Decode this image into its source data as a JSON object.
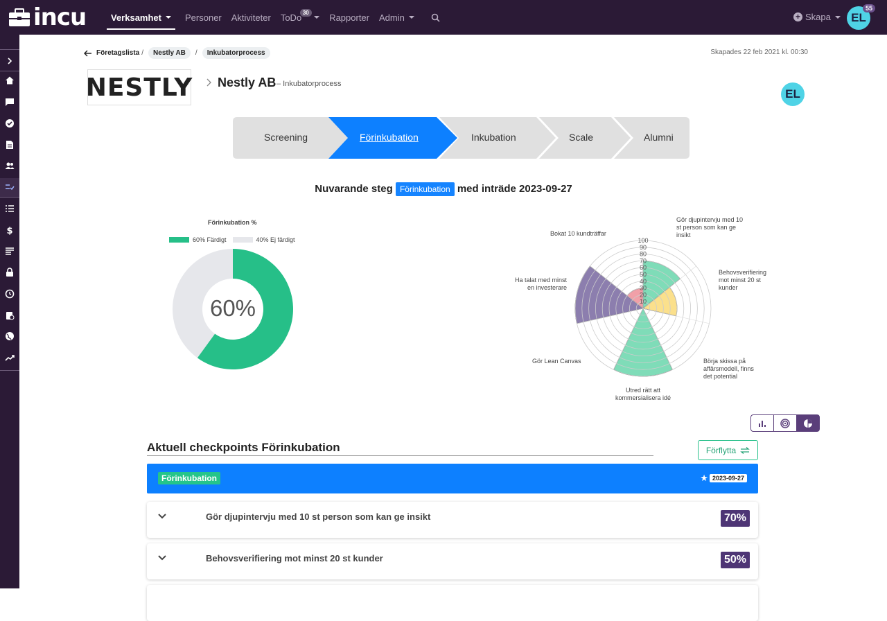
{
  "app": {
    "logo_text": "incu"
  },
  "nav": {
    "items": [
      {
        "label": "Verksamhet"
      },
      {
        "label": "Personer"
      },
      {
        "label": "Aktiviteter"
      },
      {
        "label": "ToDo"
      },
      {
        "label": "Rapporter"
      },
      {
        "label": "Admin"
      }
    ],
    "todo_count": "30",
    "create_label": "Skapa",
    "user_initials": "EL",
    "user_badge": "55"
  },
  "breadcrumb": {
    "back": "Företagslista",
    "company": "Nestly AB",
    "process": "Inkubatorprocess"
  },
  "created": "Skapades 22 feb 2021 kl. 00:30",
  "company": {
    "logo_text": "NESTLY",
    "name": "Nestly AB",
    "subtitle": "– Inkubatorprocess",
    "owner_initials": "EL"
  },
  "steps": [
    {
      "label": "Screening",
      "active": false
    },
    {
      "label": "Förinkubation",
      "active": true
    },
    {
      "label": "Inkubation",
      "active": false
    },
    {
      "label": "Scale",
      "active": false
    },
    {
      "label": "Alumni",
      "active": false
    }
  ],
  "current": {
    "prefix": "Nuvarande steg",
    "step": "Förinkubation",
    "suffix": "med inträde 2023-09-27"
  },
  "donut": {
    "title": "Förinkubation %",
    "center": "60%",
    "legend_done": "60% Färdigt",
    "legend_not": "40% Ej färdigt",
    "done_fraction": 0.6,
    "color_done": "#26bf88",
    "color_not": "#e6e7eb"
  },
  "chart_data": {
    "type": "polar-area",
    "scale_max": 100,
    "ticks": [
      "10",
      "20",
      "30",
      "40",
      "50",
      "60",
      "70",
      "80",
      "90",
      "100"
    ],
    "series": [
      {
        "label": "Gör djupintervju med 10 st person som kan ge insikt",
        "value": 70,
        "color": "#7fdcb8"
      },
      {
        "label": "Behovsverifiering mot minst 20 st kunder",
        "value": 50,
        "color": "#fbe08c"
      },
      {
        "label": "Börja skissa på affärsmodell, finns det potential",
        "value": 0,
        "color": "#a4d8f0"
      },
      {
        "label": "Utred rätt att kommersialisera idé",
        "value": 100,
        "color": "#7fdcb8"
      },
      {
        "label": "Gör Lean Canvas",
        "value": 0,
        "color": "#a4d8f0"
      },
      {
        "label": "Ha talat med minst en investerare",
        "value": 100,
        "color": "#8c7eae"
      },
      {
        "label": "Bokat 10 kundträffar",
        "value": 30,
        "color": "#f1a0a8"
      }
    ]
  },
  "checkpoints": {
    "title": "Aktuell checkpoints Förinkubation",
    "move_label": "Förflytta",
    "phase": "Förinkubation",
    "phase_date": "2023-09-27",
    "items": [
      {
        "label": "Gör djupintervju med 10 st person som kan ge insikt",
        "pct": "70%"
      },
      {
        "label": "Behovsverifiering mot minst 20 st kunder",
        "pct": "50%"
      }
    ]
  }
}
